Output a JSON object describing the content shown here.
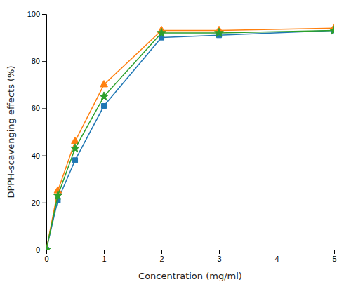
{
  "chart_data": {
    "type": "line",
    "xlabel": "Concentration (mg/ml)",
    "ylabel": "DPPH-scavenging effects (%)",
    "x": [
      0,
      0.2,
      0.5,
      1.0,
      2.0,
      3.0,
      5.0
    ],
    "series": [
      {
        "marker": "square",
        "values": [
          0,
          21,
          38,
          61,
          90,
          91,
          93
        ]
      },
      {
        "marker": "triangle",
        "values": [
          0,
          25,
          46,
          70,
          93,
          93,
          94
        ]
      },
      {
        "marker": "star",
        "values": [
          0,
          23,
          43,
          65,
          92,
          92,
          93
        ]
      }
    ],
    "xlim": [
      0,
      5
    ],
    "ylim": [
      0,
      100
    ],
    "xticks": [
      0,
      1,
      2,
      3,
      4,
      5
    ],
    "yticks": [
      0,
      20,
      40,
      60,
      80,
      100
    ],
    "grid": false
  }
}
